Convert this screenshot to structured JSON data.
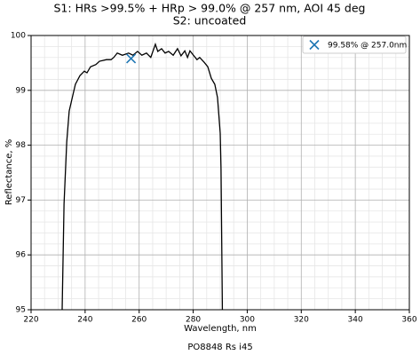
{
  "chart_data": {
    "type": "line",
    "title": "S1: HRs >99.5% + HRp > 99.0% @ 257 nm, AOI 45 deg",
    "subtitle": "S2: uncoated",
    "xlabel": "Wavelength, nm",
    "ylabel": "Reflectance, %",
    "footer": "PO8848 Rs i45",
    "xlim": [
      220,
      360
    ],
    "ylim": [
      95,
      100
    ],
    "xticks": [
      220,
      240,
      260,
      280,
      300,
      320,
      340,
      360
    ],
    "yticks": [
      95,
      96,
      97,
      98,
      99,
      100
    ],
    "xminorticks": [
      225,
      230,
      235,
      245,
      250,
      255,
      265,
      270,
      275,
      285,
      290,
      295,
      305,
      310,
      315,
      325,
      330,
      335,
      345,
      350,
      355
    ],
    "yminorticks": [
      95.2,
      95.4,
      95.6,
      95.8,
      96.2,
      96.4,
      96.6,
      96.8,
      97.2,
      97.4,
      97.6,
      97.8,
      98.2,
      98.4,
      98.6,
      98.8,
      99.2,
      99.4,
      99.6,
      99.8
    ],
    "grid": true,
    "legend": "upper right",
    "series": [
      {
        "color": "#000000",
        "x": [
          231.5,
          232.2,
          233.2,
          234.1,
          235.4,
          236.4,
          238.1,
          239.7,
          240.7,
          242,
          244,
          245.3,
          247.9,
          249.6,
          250.6,
          251.9,
          253.8,
          256.1,
          257.7,
          259.4,
          261,
          262.7,
          264.3,
          266,
          266.9,
          268.3,
          269.6,
          270.9,
          272.6,
          274.2,
          275.5,
          276.9,
          277.9,
          278.8,
          280.1,
          281.4,
          282.4,
          284.1,
          285.4,
          286.7,
          288,
          289,
          290,
          290.3,
          290.8
        ],
        "values": [
          95,
          96.93,
          98.06,
          98.62,
          98.9,
          99.11,
          99.27,
          99.35,
          99.32,
          99.43,
          99.47,
          99.53,
          99.56,
          99.56,
          99.6,
          99.68,
          99.64,
          99.68,
          99.64,
          99.71,
          99.64,
          99.68,
          99.6,
          99.84,
          99.71,
          99.76,
          99.68,
          99.71,
          99.64,
          99.76,
          99.63,
          99.72,
          99.6,
          99.72,
          99.64,
          99.56,
          99.6,
          99.51,
          99.43,
          99.22,
          99.11,
          98.87,
          98.22,
          97.57,
          95
        ]
      }
    ],
    "marker": {
      "name": "99.58% @ 257.0nm",
      "x": 257.0,
      "y": 99.58,
      "color": "#1f77b4"
    }
  }
}
